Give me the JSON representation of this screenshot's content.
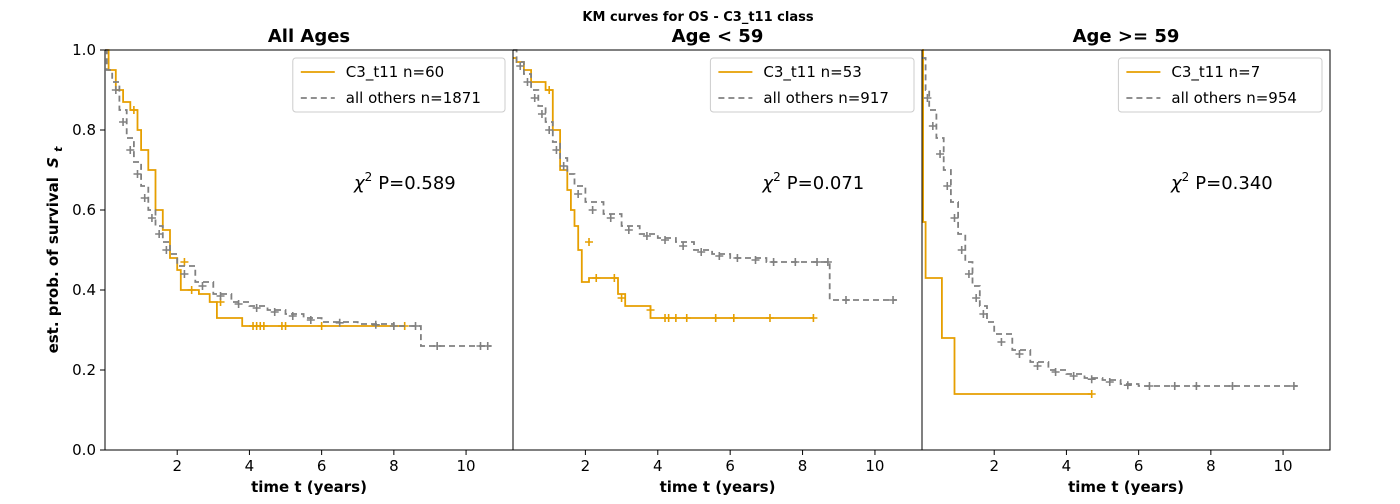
{
  "chart_data": {
    "type": "line",
    "title": "KM curves for OS - C3_t11 class",
    "ylabel": "est. prob. of survival",
    "ylabel_symbol": "S",
    "ylabel_symbol_sub": "t",
    "ylim": [
      0,
      1
    ],
    "yticks": [
      "0.0",
      "0.2",
      "0.4",
      "0.6",
      "0.8",
      "1.0"
    ],
    "colors": {
      "c3": "#E69F00",
      "others": "#808080"
    },
    "panels": [
      {
        "title": "All Ages",
        "xlabel": "time t (years)",
        "xlim": [
          0,
          11.3
        ],
        "xticks": [
          "2",
          "4",
          "6",
          "8",
          "10"
        ],
        "stat_prefix": "χ",
        "stat_sup": "2",
        "stat_text": "P=0.589",
        "series": [
          {
            "name": "C3_t11 n=60",
            "key": "c3",
            "steps": [
              [
                0,
                1.0
              ],
              [
                0.1,
                0.95
              ],
              [
                0.3,
                0.9
              ],
              [
                0.5,
                0.87
              ],
              [
                0.7,
                0.85
              ],
              [
                0.9,
                0.8
              ],
              [
                1.0,
                0.75
              ],
              [
                1.2,
                0.7
              ],
              [
                1.4,
                0.6
              ],
              [
                1.6,
                0.55
              ],
              [
                1.8,
                0.48
              ],
              [
                2.0,
                0.45
              ],
              [
                2.1,
                0.4
              ],
              [
                2.6,
                0.39
              ],
              [
                2.9,
                0.37
              ],
              [
                3.1,
                0.33
              ],
              [
                3.8,
                0.31
              ],
              [
                8.3,
                0.31
              ]
            ],
            "censor": [
              [
                0.8,
                0.85
              ],
              [
                2.2,
                0.47
              ],
              [
                2.4,
                0.4
              ],
              [
                3.2,
                0.37
              ],
              [
                4.1,
                0.31
              ],
              [
                4.2,
                0.31
              ],
              [
                4.3,
                0.31
              ],
              [
                4.4,
                0.31
              ],
              [
                4.9,
                0.31
              ],
              [
                5.0,
                0.31
              ],
              [
                6.0,
                0.31
              ],
              [
                8.3,
                0.31
              ]
            ]
          },
          {
            "name": "all others n=1871",
            "key": "others",
            "steps": [
              [
                0,
                1.0
              ],
              [
                0.05,
                0.95
              ],
              [
                0.2,
                0.92
              ],
              [
                0.4,
                0.85
              ],
              [
                0.6,
                0.78
              ],
              [
                0.8,
                0.72
              ],
              [
                1.0,
                0.66
              ],
              [
                1.2,
                0.6
              ],
              [
                1.4,
                0.56
              ],
              [
                1.6,
                0.52
              ],
              [
                1.8,
                0.49
              ],
              [
                2.0,
                0.46
              ],
              [
                2.5,
                0.42
              ],
              [
                3.0,
                0.39
              ],
              [
                3.5,
                0.37
              ],
              [
                4.0,
                0.36
              ],
              [
                4.5,
                0.35
              ],
              [
                5.0,
                0.34
              ],
              [
                5.5,
                0.33
              ],
              [
                6.0,
                0.32
              ],
              [
                7.0,
                0.315
              ],
              [
                8.0,
                0.31
              ],
              [
                8.7,
                0.31
              ],
              [
                8.75,
                0.26
              ],
              [
                10.7,
                0.26
              ]
            ],
            "censor": [
              [
                0.3,
                0.9
              ],
              [
                0.5,
                0.82
              ],
              [
                0.7,
                0.75
              ],
              [
                0.9,
                0.69
              ],
              [
                1.1,
                0.63
              ],
              [
                1.3,
                0.58
              ],
              [
                1.5,
                0.54
              ],
              [
                1.7,
                0.5
              ],
              [
                2.2,
                0.44
              ],
              [
                2.7,
                0.41
              ],
              [
                3.2,
                0.385
              ],
              [
                3.7,
                0.365
              ],
              [
                4.2,
                0.355
              ],
              [
                4.7,
                0.345
              ],
              [
                5.2,
                0.335
              ],
              [
                5.7,
                0.325
              ],
              [
                6.5,
                0.318
              ],
              [
                7.5,
                0.313
              ],
              [
                8.0,
                0.31
              ],
              [
                8.6,
                0.31
              ],
              [
                9.2,
                0.26
              ],
              [
                10.4,
                0.26
              ],
              [
                10.6,
                0.26
              ]
            ]
          }
        ]
      },
      {
        "title": "Age < 59",
        "xlabel": "time t (years)",
        "xlim": [
          0,
          11.3
        ],
        "xticks": [
          "2",
          "4",
          "6",
          "8",
          "10"
        ],
        "stat_prefix": "χ",
        "stat_sup": "2",
        "stat_text": "P=0.071",
        "series": [
          {
            "name": "C3_t11 n=53",
            "key": "c3",
            "steps": [
              [
                0,
                0.98
              ],
              [
                0.1,
                0.97
              ],
              [
                0.3,
                0.95
              ],
              [
                0.5,
                0.92
              ],
              [
                0.9,
                0.9
              ],
              [
                1.1,
                0.8
              ],
              [
                1.3,
                0.7
              ],
              [
                1.5,
                0.65
              ],
              [
                1.6,
                0.6
              ],
              [
                1.7,
                0.56
              ],
              [
                1.8,
                0.5
              ],
              [
                1.9,
                0.42
              ],
              [
                2.1,
                0.43
              ],
              [
                2.2,
                0.43
              ],
              [
                2.9,
                0.39
              ],
              [
                3.1,
                0.36
              ],
              [
                3.8,
                0.33
              ],
              [
                8.3,
                0.33
              ]
            ],
            "censor": [
              [
                1.0,
                0.9
              ],
              [
                2.1,
                0.52
              ],
              [
                2.3,
                0.43
              ],
              [
                2.8,
                0.43
              ],
              [
                3.0,
                0.38
              ],
              [
                3.8,
                0.35
              ],
              [
                4.2,
                0.33
              ],
              [
                4.3,
                0.33
              ],
              [
                4.5,
                0.33
              ],
              [
                4.8,
                0.33
              ],
              [
                5.6,
                0.33
              ],
              [
                6.1,
                0.33
              ],
              [
                7.1,
                0.33
              ],
              [
                8.3,
                0.33
              ]
            ]
          },
          {
            "name": "all others n=917",
            "key": "others",
            "steps": [
              [
                0,
                1.0
              ],
              [
                0.1,
                0.97
              ],
              [
                0.3,
                0.94
              ],
              [
                0.5,
                0.9
              ],
              [
                0.7,
                0.86
              ],
              [
                0.9,
                0.82
              ],
              [
                1.1,
                0.77
              ],
              [
                1.3,
                0.73
              ],
              [
                1.5,
                0.69
              ],
              [
                1.7,
                0.66
              ],
              [
                2.0,
                0.62
              ],
              [
                2.5,
                0.59
              ],
              [
                3.0,
                0.56
              ],
              [
                3.5,
                0.54
              ],
              [
                4.0,
                0.53
              ],
              [
                4.5,
                0.52
              ],
              [
                5.0,
                0.5
              ],
              [
                5.5,
                0.49
              ],
              [
                6.0,
                0.48
              ],
              [
                7.0,
                0.47
              ],
              [
                8.0,
                0.47
              ],
              [
                8.7,
                0.47
              ],
              [
                8.75,
                0.375
              ],
              [
                10.6,
                0.375
              ]
            ],
            "censor": [
              [
                0.2,
                0.96
              ],
              [
                0.4,
                0.92
              ],
              [
                0.6,
                0.88
              ],
              [
                0.8,
                0.84
              ],
              [
                1.0,
                0.8
              ],
              [
                1.2,
                0.75
              ],
              [
                1.4,
                0.71
              ],
              [
                1.8,
                0.64
              ],
              [
                2.2,
                0.6
              ],
              [
                2.7,
                0.58
              ],
              [
                3.2,
                0.55
              ],
              [
                3.7,
                0.535
              ],
              [
                4.2,
                0.525
              ],
              [
                4.7,
                0.51
              ],
              [
                5.2,
                0.495
              ],
              [
                5.7,
                0.485
              ],
              [
                6.2,
                0.48
              ],
              [
                6.7,
                0.475
              ],
              [
                7.2,
                0.47
              ],
              [
                7.8,
                0.47
              ],
              [
                8.4,
                0.47
              ],
              [
                8.7,
                0.47
              ],
              [
                9.2,
                0.375
              ],
              [
                10.5,
                0.375
              ]
            ]
          }
        ]
      },
      {
        "title": "Age >= 59",
        "xlabel": "time t (years)",
        "xlim": [
          0,
          11.3
        ],
        "xticks": [
          "2",
          "4",
          "6",
          "8",
          "10"
        ],
        "stat_prefix": "χ",
        "stat_sup": "2",
        "stat_text": "P=0.340",
        "series": [
          {
            "name": "C3_t11 n=7",
            "key": "c3",
            "steps": [
              [
                0,
                1.0
              ],
              [
                0.03,
                0.57
              ],
              [
                0.1,
                0.43
              ],
              [
                0.5,
                0.43
              ],
              [
                0.55,
                0.28
              ],
              [
                0.85,
                0.28
              ],
              [
                0.9,
                0.14
              ],
              [
                4.7,
                0.14
              ]
            ],
            "censor": [
              [
                4.7,
                0.14
              ]
            ]
          },
          {
            "name": "all others n=954",
            "key": "others",
            "steps": [
              [
                0,
                0.98
              ],
              [
                0.1,
                0.9
              ],
              [
                0.2,
                0.85
              ],
              [
                0.4,
                0.78
              ],
              [
                0.6,
                0.7
              ],
              [
                0.8,
                0.62
              ],
              [
                1.0,
                0.54
              ],
              [
                1.2,
                0.47
              ],
              [
                1.4,
                0.41
              ],
              [
                1.6,
                0.36
              ],
              [
                1.8,
                0.32
              ],
              [
                2.0,
                0.29
              ],
              [
                2.5,
                0.25
              ],
              [
                3.0,
                0.22
              ],
              [
                3.5,
                0.2
              ],
              [
                4.0,
                0.19
              ],
              [
                4.5,
                0.18
              ],
              [
                5.0,
                0.175
              ],
              [
                5.5,
                0.165
              ],
              [
                6.0,
                0.16
              ],
              [
                8.0,
                0.16
              ],
              [
                10.4,
                0.16
              ]
            ],
            "censor": [
              [
                0.15,
                0.88
              ],
              [
                0.3,
                0.81
              ],
              [
                0.5,
                0.74
              ],
              [
                0.7,
                0.66
              ],
              [
                0.9,
                0.58
              ],
              [
                1.1,
                0.5
              ],
              [
                1.3,
                0.44
              ],
              [
                1.5,
                0.38
              ],
              [
                1.7,
                0.34
              ],
              [
                2.2,
                0.27
              ],
              [
                2.7,
                0.24
              ],
              [
                3.2,
                0.21
              ],
              [
                3.7,
                0.195
              ],
              [
                4.2,
                0.185
              ],
              [
                4.7,
                0.177
              ],
              [
                5.2,
                0.17
              ],
              [
                5.7,
                0.162
              ],
              [
                6.3,
                0.16
              ],
              [
                7.0,
                0.16
              ],
              [
                7.6,
                0.16
              ],
              [
                8.6,
                0.16
              ],
              [
                10.3,
                0.16
              ]
            ]
          }
        ]
      }
    ]
  }
}
